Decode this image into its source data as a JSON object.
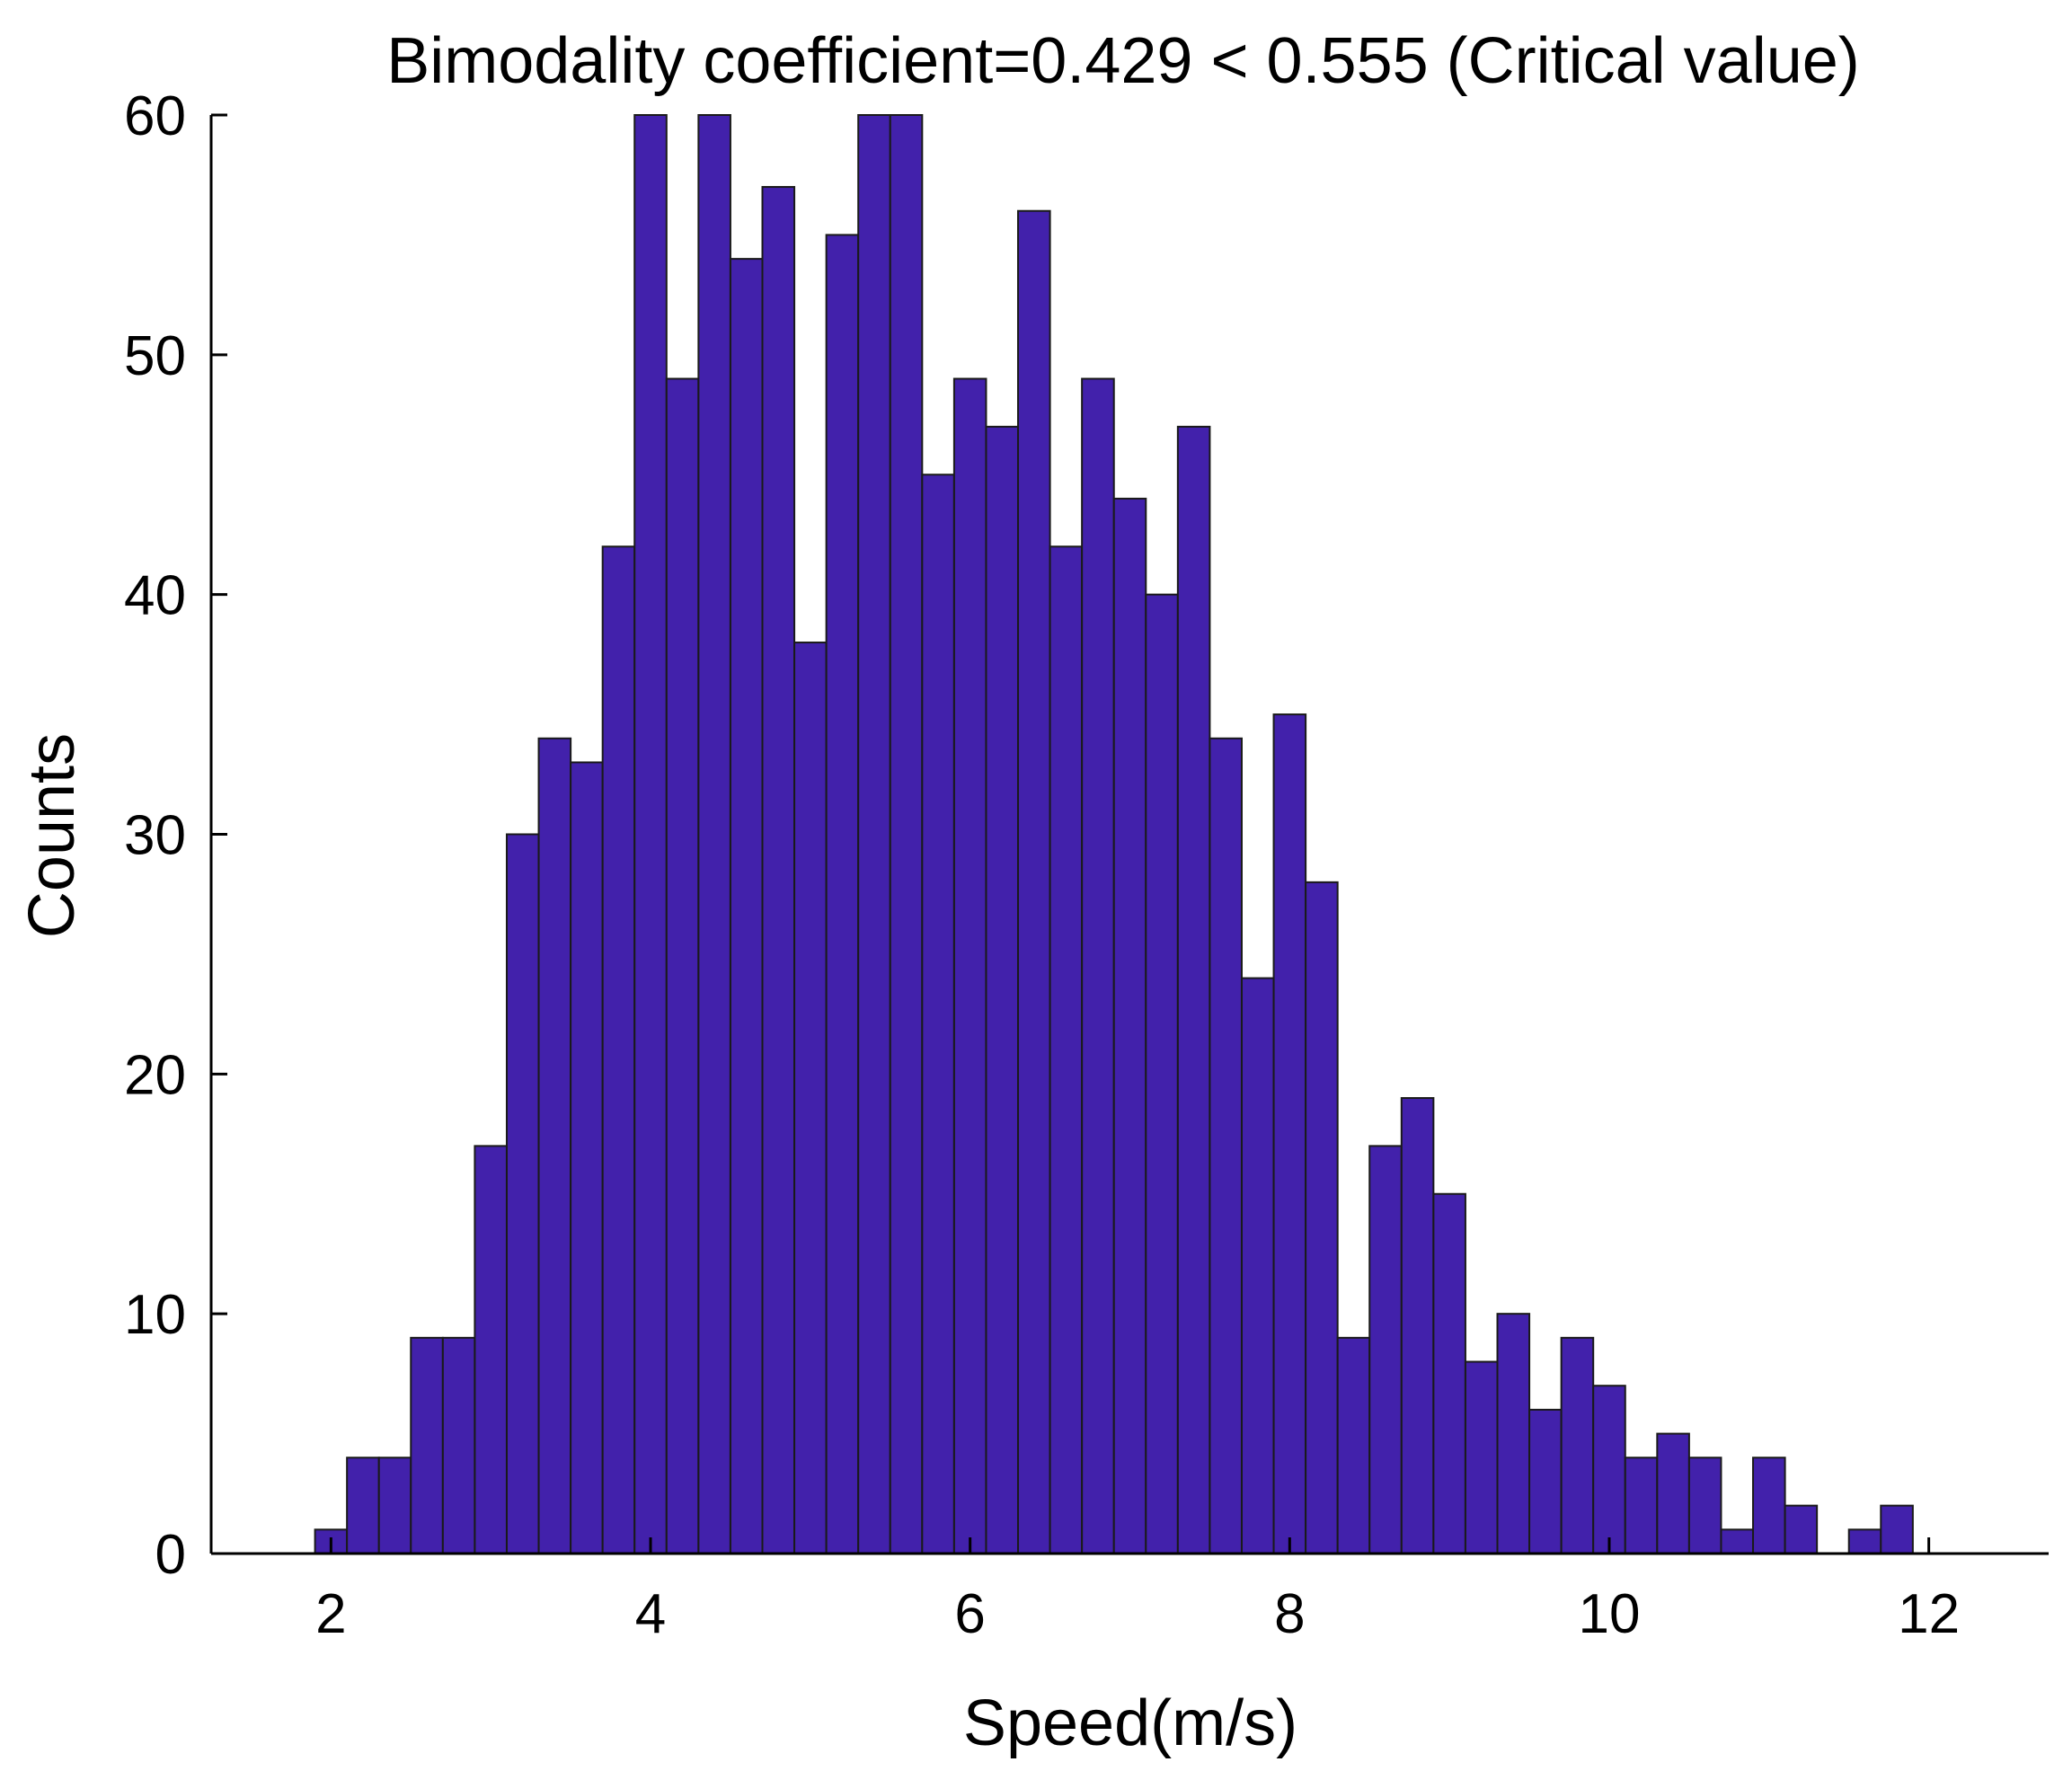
{
  "chart_data": {
    "type": "bar",
    "subtype": "histogram",
    "title": "Bimodality coefficient=0.429 < 0.555 (Critical value)",
    "xlabel": "Speed(m/s)",
    "ylabel": "Counts",
    "xlim": [
      1.25,
      12.75
    ],
    "ylim": [
      0,
      60
    ],
    "xticks": [
      2,
      4,
      6,
      8,
      10,
      12
    ],
    "yticks": [
      0,
      10,
      20,
      30,
      40,
      50,
      60
    ],
    "grid": false,
    "legend": "none",
    "bin_start": 1.9,
    "bin_width": 0.2,
    "values": [
      1,
      4,
      4,
      9,
      9,
      17,
      30,
      34,
      33,
      42,
      60,
      49,
      60,
      54,
      57,
      38,
      55,
      60,
      60,
      45,
      49,
      47,
      56,
      42,
      49,
      44,
      40,
      47,
      34,
      24,
      35,
      28,
      9,
      17,
      19,
      15,
      8,
      10,
      6,
      9,
      7,
      4,
      5,
      4,
      1,
      4,
      2,
      0,
      1,
      2
    ],
    "bar_color": "#4221AB",
    "edge_color": "#1a1a1a"
  }
}
